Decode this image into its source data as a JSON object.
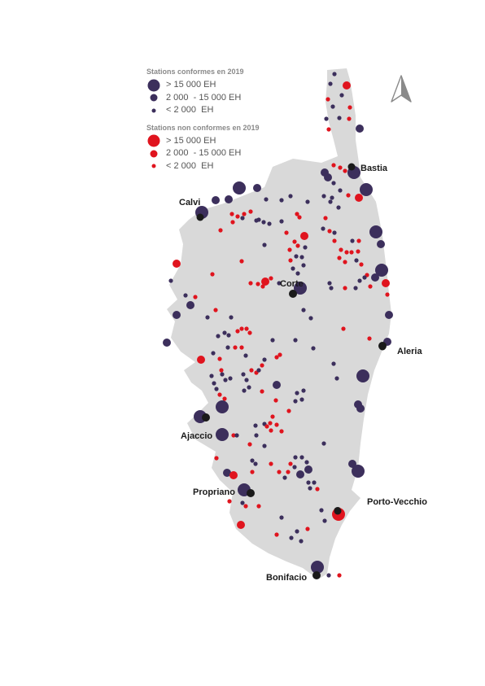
{
  "colors": {
    "land": "#d9d9d9",
    "conforme": "#3c2f5c",
    "non_conforme": "#e0141e",
    "city_marker": "#1a1a1a"
  },
  "legend": {
    "conformes": {
      "title": "Stations conformes en 2019",
      "items": [
        {
          "label": "> 15 000 EH",
          "size": "large"
        },
        {
          "label": "2 000  - 15 000 EH",
          "size": "medium"
        },
        {
          "label": "< 2 000  EH",
          "size": "small"
        }
      ]
    },
    "non_conformes": {
      "title": "Stations non conformes en 2019",
      "items": [
        {
          "label": "> 15 000 EH",
          "size": "large"
        },
        {
          "label": "2 000  - 15 000 EH",
          "size": "medium"
        },
        {
          "label": "< 2 000  EH",
          "size": "small"
        }
      ]
    }
  },
  "north_arrow_icon": "north-arrow-icon",
  "cities": [
    "Bastia",
    "Calvi",
    "Corte",
    "Aleria",
    "Ajaccio",
    "Propriano",
    "Porto-Vecchio",
    "Bonifacio"
  ]
}
